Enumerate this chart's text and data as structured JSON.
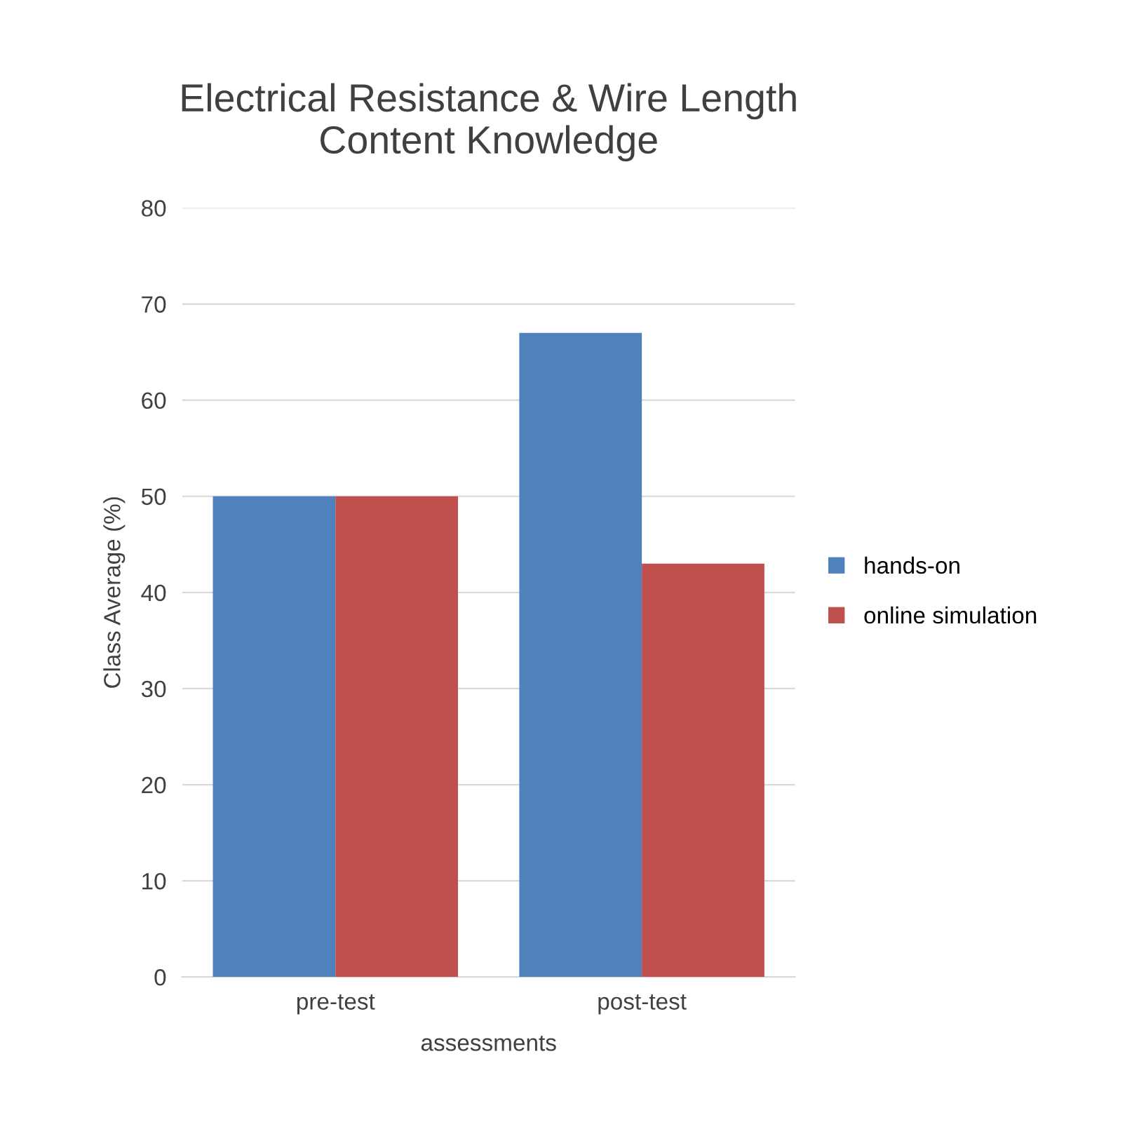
{
  "chart_data": {
    "type": "bar",
    "title": "Electrical Resistance & Wire Length\nContent Knowledge",
    "xlabel": "assessments",
    "ylabel": "Class Average (%)",
    "categories": [
      "pre-test",
      "post-test"
    ],
    "series": [
      {
        "name": "hands-on",
        "color": "#4f81bd",
        "values": [
          50,
          67
        ]
      },
      {
        "name": "online simulation",
        "color": "#c0504d",
        "values": [
          50,
          43
        ]
      }
    ],
    "ylim": [
      0,
      80
    ],
    "yticks": [
      0,
      10,
      20,
      30,
      40,
      50,
      60,
      70,
      80
    ],
    "grid": "y",
    "legend": "right"
  }
}
